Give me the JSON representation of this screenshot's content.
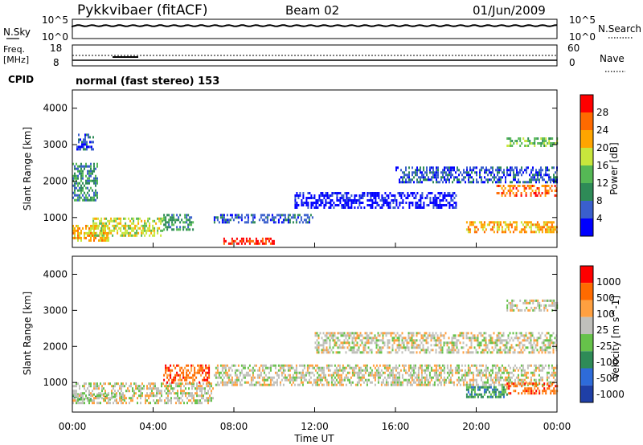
{
  "header": {
    "station": "Pykkvibaer (fitACF)",
    "beam": "Beam 02",
    "date": "01/Jun/2009"
  },
  "noise_panel": {
    "left_label": "N.Sky",
    "right_label": "N.Search",
    "left_ticks": [
      "10^5",
      "10^0"
    ],
    "right_ticks": [
      "10^5",
      "10^0"
    ]
  },
  "freq_panel": {
    "left_label_1": "Freq.",
    "left_label_2": "[MHz]",
    "right_label": "Nave",
    "left_ticks": [
      "18",
      "8"
    ],
    "right_ticks": [
      "60",
      "0"
    ]
  },
  "cpid": {
    "label": "CPID",
    "text": "normal (fast stereo) 153"
  },
  "colors": {
    "power_scale": [
      "#0000ff",
      "#3a5fcd",
      "#2e8b57",
      "#55b855",
      "#c8e63c",
      "#ffa500",
      "#ff6a00",
      "#ff0000"
    ],
    "velocity_scale": [
      "#1f3fa6",
      "#2e6bd9",
      "#2e8b57",
      "#66c24a",
      "#c0c0bb",
      "#ffa040",
      "#ff6a00",
      "#ff0000"
    ]
  },
  "chart_data": [
    {
      "type": "heatmap",
      "title": "",
      "xlabel": "Time UT",
      "ylabel": "Slant Range [km]",
      "colorbar_label": "Power [dB]",
      "colorbar_ticks": [
        "28",
        "24",
        "20",
        "16",
        "12",
        "8",
        "4"
      ],
      "x_ticks": [
        "00:00",
        "04:00",
        "08:00",
        "12:00",
        "16:00",
        "20:00",
        "00:00"
      ],
      "y_ticks": [
        "4000",
        "3000",
        "2000",
        "1000"
      ],
      "xlim_hours": [
        0,
        24
      ],
      "ylim_km": [
        180,
        4500
      ],
      "regions": [
        {
          "t0": 0.0,
          "t1": 1.8,
          "r0": 400,
          "r1": 800,
          "level": 5
        },
        {
          "t0": 1.0,
          "t1": 4.5,
          "r0": 500,
          "r1": 1000,
          "level": 4
        },
        {
          "t0": 4.5,
          "t1": 6.0,
          "r0": 700,
          "r1": 1100,
          "level": 2
        },
        {
          "t0": 0.0,
          "t1": 1.2,
          "r0": 1500,
          "r1": 2500,
          "level": 2
        },
        {
          "t0": 0.2,
          "t1": 1.0,
          "r0": 2900,
          "r1": 3300,
          "level": 1
        },
        {
          "t0": 7.4,
          "t1": 10.0,
          "r0": 300,
          "r1": 450,
          "level": 7
        },
        {
          "t0": 7.0,
          "t1": 12.0,
          "r0": 900,
          "r1": 1100,
          "level": 1
        },
        {
          "t0": 11.0,
          "t1": 19.0,
          "r0": 1300,
          "r1": 1700,
          "level": 0
        },
        {
          "t0": 16.0,
          "t1": 24.0,
          "r0": 2000,
          "r1": 2400,
          "level": 1
        },
        {
          "t0": 21.0,
          "t1": 24.0,
          "r0": 1600,
          "r1": 1900,
          "level": 6
        },
        {
          "t0": 21.5,
          "t1": 24.0,
          "r0": 3000,
          "r1": 3200,
          "level": 3
        },
        {
          "t0": 19.5,
          "t1": 24.0,
          "r0": 600,
          "r1": 900,
          "level": 5
        }
      ]
    },
    {
      "type": "heatmap",
      "title": "",
      "xlabel": "Time UT",
      "ylabel": "Slant Range [km]",
      "colorbar_label": "Velocity [m s^-1]",
      "colorbar_ticks": [
        "1000",
        "500",
        "100",
        "25",
        "-25",
        "-100",
        "-500",
        "-1000"
      ],
      "x_ticks": [
        "00:00",
        "04:00",
        "08:00",
        "12:00",
        "16:00",
        "20:00",
        "00:00"
      ],
      "y_ticks": [
        "4000",
        "3000",
        "2000",
        "1000"
      ],
      "xlim_hours": [
        0,
        24
      ],
      "ylim_km": [
        180,
        4500
      ],
      "regions": [
        {
          "t0": 0.0,
          "t1": 2.5,
          "r0": 500,
          "r1": 700,
          "level": 3
        },
        {
          "t0": 0.0,
          "t1": 7.0,
          "r0": 400,
          "r1": 1000,
          "level": 4
        },
        {
          "t0": 4.5,
          "t1": 6.8,
          "r0": 1000,
          "r1": 1500,
          "level": 6
        },
        {
          "t0": 7.0,
          "t1": 24.0,
          "r0": 900,
          "r1": 1500,
          "level": 4
        },
        {
          "t0": 12.0,
          "t1": 24.0,
          "r0": 1800,
          "r1": 2400,
          "level": 4
        },
        {
          "t0": 19.5,
          "t1": 21.5,
          "r0": 600,
          "r1": 900,
          "level": 2
        },
        {
          "t0": 21.5,
          "t1": 24.0,
          "r0": 700,
          "r1": 1000,
          "level": 6
        },
        {
          "t0": 21.5,
          "t1": 24.0,
          "r0": 3000,
          "r1": 3300,
          "level": 4
        }
      ]
    }
  ]
}
